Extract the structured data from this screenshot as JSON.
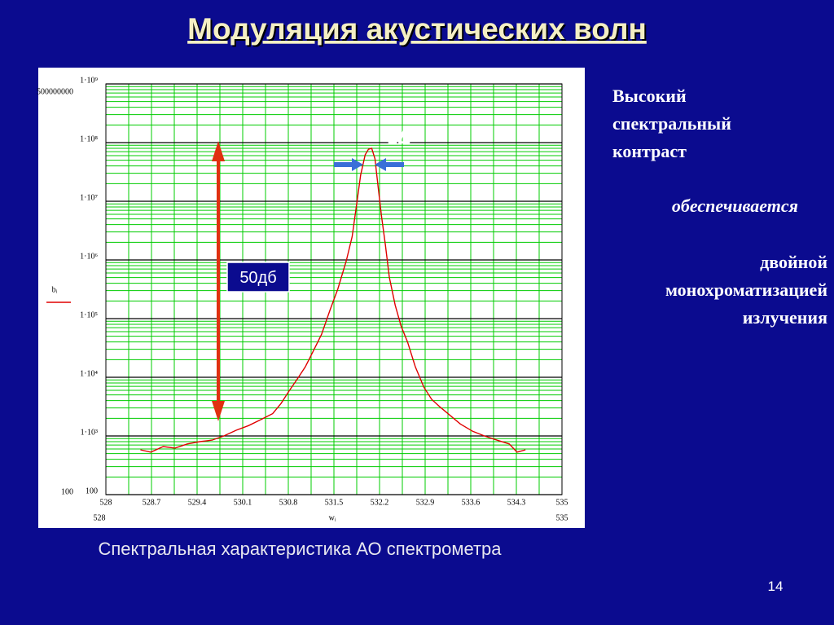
{
  "slide": {
    "title": "Модуляция акустических волн",
    "right_text": {
      "heading": [
        "Высокий",
        "спектральный",
        "контраст"
      ],
      "middle": "обеспечивается",
      "bottom": [
        "двойной",
        "монохроматизацией",
        "излучения"
      ]
    },
    "caption": "Спектральная характеристика АО спектрометра",
    "page_number": "14"
  },
  "chart_data": {
    "type": "line",
    "xlabel": "wᵢ",
    "log_y": true,
    "grid": true,
    "grid_color": "#00cc00",
    "decade_grid_color": "#000000",
    "x": [
      528.53,
      528.69,
      528.88,
      529.06,
      529.25,
      529.44,
      529.63,
      529.81,
      530.0,
      530.19,
      530.38,
      530.56,
      530.69,
      530.81,
      530.94,
      531.06,
      531.19,
      531.31,
      531.44,
      531.56,
      531.69,
      531.78,
      531.85,
      531.91,
      531.98,
      532.03,
      532.08,
      532.13,
      532.18,
      532.23,
      532.29,
      532.35,
      532.44,
      532.53,
      532.63,
      532.75,
      532.88,
      533.0,
      533.13,
      533.25,
      533.44,
      533.63,
      533.81,
      534.0,
      534.19,
      534.31,
      534.44
    ],
    "series": [
      {
        "name": "bᵢ",
        "color": "#e00000",
        "values": [
          580,
          530,
          660,
          620,
          730,
          800,
          850,
          1000,
          1250,
          1500,
          1900,
          2400,
          3600,
          5800,
          9400,
          15000,
          29000,
          54000,
          140000,
          320000,
          970000,
          2500000,
          9100000,
          28000000,
          62000000,
          77000000,
          80000000,
          53000000,
          17000000,
          5600000,
          1800000,
          510000,
          170000,
          75000,
          40000,
          15000,
          6800,
          4200,
          3100,
          2400,
          1600,
          1200,
          1000,
          850,
          730,
          530,
          580
        ]
      }
    ],
    "xlim": [
      528,
      535
    ],
    "xticks": [
      528,
      528.7,
      529.4,
      530.1,
      530.8,
      531.5,
      532.2,
      532.9,
      533.6,
      534.3,
      535
    ],
    "ylim": [
      100,
      1000000000
    ],
    "yticks": [
      100,
      {
        "value": 1000,
        "label": "1·10³"
      },
      {
        "value": 10000,
        "label": "1·10⁴"
      },
      {
        "value": 100000,
        "label": "1·10⁵"
      },
      {
        "value": 1000000,
        "label": "1·10⁶"
      },
      {
        "value": 10000000,
        "label": "1·10⁷"
      },
      {
        "value": 100000000,
        "label": "1·10⁸"
      },
      {
        "value": 1000000000,
        "label": "1·10⁹"
      }
    ],
    "range_labels": {
      "y": [
        100,
        500000000
      ],
      "x": [
        528,
        535
      ]
    },
    "annotations": {
      "span": "50дб",
      "width": "2Δ"
    }
  }
}
